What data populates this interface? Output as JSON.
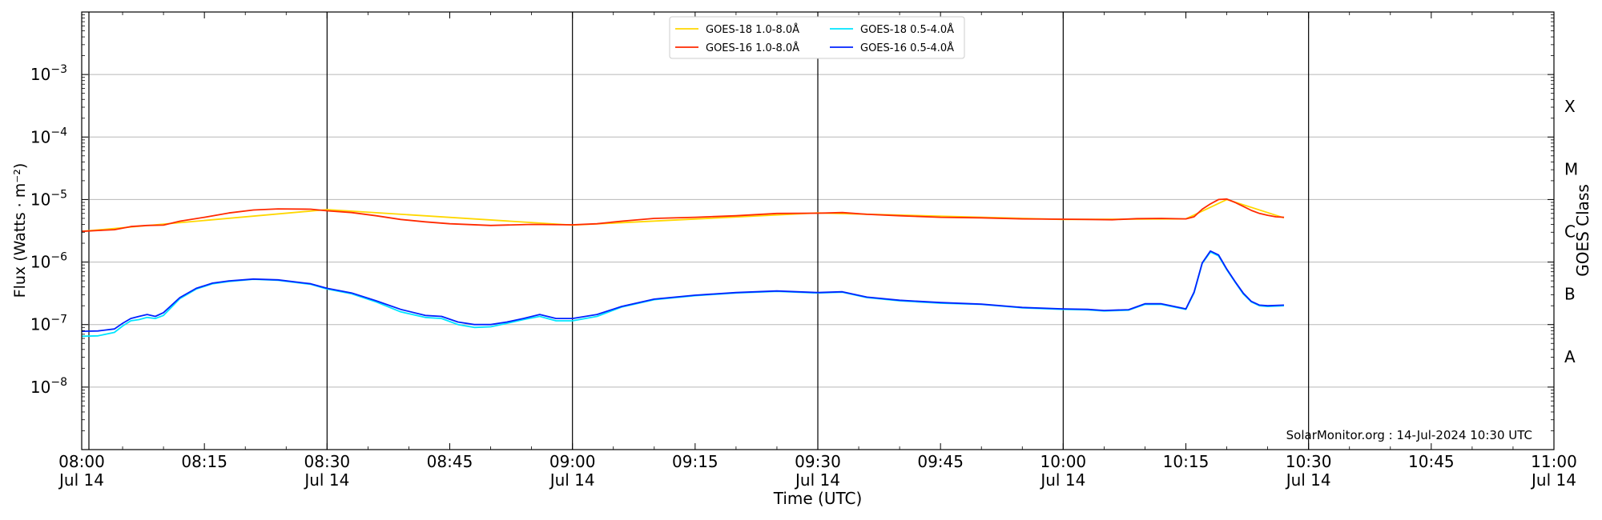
{
  "chart_data": {
    "type": "line",
    "xlabel": "Time (UTC)",
    "ylabel": "Flux (Watts · m⁻²)",
    "ylabel_right": "GOES Class",
    "y_scale": "log",
    "ylim": [
      1e-09,
      0.01
    ],
    "xlim": [
      "2024-07-14T08:00",
      "2024-07-14T11:00"
    ],
    "grid": "horizontal",
    "legend_position": "top-center",
    "watermark": "SolarMonitor.org : 14-Jul-2024 10:30 UTC",
    "y_ticks": [
      {
        "value": 1e-08,
        "base": "10",
        "exp": "−8"
      },
      {
        "value": 1e-07,
        "base": "10",
        "exp": "−7"
      },
      {
        "value": 1e-06,
        "base": "10",
        "exp": "−6"
      },
      {
        "value": 1e-05,
        "base": "10",
        "exp": "−5"
      },
      {
        "value": 0.0001,
        "base": "10",
        "exp": "−4"
      },
      {
        "value": 0.001,
        "base": "10",
        "exp": "−3"
      }
    ],
    "x_ticks": [
      {
        "time": "08:00",
        "label": "08:00",
        "sub": "Jul 14"
      },
      {
        "time": "08:15",
        "label": "08:15",
        "sub": ""
      },
      {
        "time": "08:30",
        "label": "08:30",
        "sub": "Jul 14"
      },
      {
        "time": "08:45",
        "label": "08:45",
        "sub": ""
      },
      {
        "time": "09:00",
        "label": "09:00",
        "sub": "Jul 14"
      },
      {
        "time": "09:15",
        "label": "09:15",
        "sub": ""
      },
      {
        "time": "09:30",
        "label": "09:30",
        "sub": "Jul 14"
      },
      {
        "time": "09:45",
        "label": "09:45",
        "sub": ""
      },
      {
        "time": "10:00",
        "label": "10:00",
        "sub": "Jul 14"
      },
      {
        "time": "10:15",
        "label": "10:15",
        "sub": ""
      },
      {
        "time": "10:30",
        "label": "10:30",
        "sub": "Jul 14"
      },
      {
        "time": "10:45",
        "label": "10:45",
        "sub": ""
      },
      {
        "time": "11:00",
        "label": "11:00",
        "sub": "Jul 14"
      }
    ],
    "vlines": [
      "08:00",
      "08:30",
      "09:00",
      "09:30",
      "10:00",
      "10:30"
    ],
    "goes_classes": [
      {
        "label": "A",
        "value": 3.16e-08
      },
      {
        "label": "B",
        "value": 3.16e-07
      },
      {
        "label": "C",
        "value": 3.16e-06
      },
      {
        "label": "M",
        "value": 3.16e-05
      },
      {
        "label": "X",
        "value": 0.000316
      }
    ],
    "series": [
      {
        "name": "GOES-18 1.0-8.0Å",
        "color": "#ffd700",
        "points": [
          [
            "08:00",
            3.1e-06
          ],
          [
            "08:30",
            6.9e-06
          ],
          [
            "09:00",
            3.9e-06
          ],
          [
            "09:30",
            6.1e-06
          ],
          [
            "10:00",
            4.8e-06
          ],
          [
            "10:15",
            4.9e-06
          ],
          [
            "10:20",
            1e-05
          ],
          [
            "10:27",
            5.1e-06
          ]
        ]
      },
      {
        "name": "GOES-16 1.0-8.0Å",
        "color": "#ff2a00",
        "points": [
          [
            "08:00",
            3.1e-06
          ],
          [
            "08:02",
            3.2e-06
          ],
          [
            "08:04",
            3.3e-06
          ],
          [
            "08:06",
            3.7e-06
          ],
          [
            "08:08",
            3.85e-06
          ],
          [
            "08:10",
            3.9e-06
          ],
          [
            "08:12",
            4.5e-06
          ],
          [
            "08:15",
            5.2e-06
          ],
          [
            "08:18",
            6.1e-06
          ],
          [
            "08:21",
            6.8e-06
          ],
          [
            "08:24",
            7.1e-06
          ],
          [
            "08:28",
            7e-06
          ],
          [
            "08:30",
            6.6e-06
          ],
          [
            "08:33",
            6.2e-06
          ],
          [
            "08:36",
            5.5e-06
          ],
          [
            "08:39",
            4.8e-06
          ],
          [
            "08:42",
            4.4e-06
          ],
          [
            "08:45",
            4.1e-06
          ],
          [
            "08:50",
            3.85e-06
          ],
          [
            "08:55",
            4e-06
          ],
          [
            "09:00",
            3.95e-06
          ],
          [
            "09:03",
            4.1e-06
          ],
          [
            "09:06",
            4.5e-06
          ],
          [
            "09:10",
            5e-06
          ],
          [
            "09:15",
            5.2e-06
          ],
          [
            "09:20",
            5.5e-06
          ],
          [
            "09:25",
            6e-06
          ],
          [
            "09:30",
            6.05e-06
          ],
          [
            "09:33",
            6.2e-06
          ],
          [
            "09:36",
            5.8e-06
          ],
          [
            "09:40",
            5.5e-06
          ],
          [
            "09:45",
            5.2e-06
          ],
          [
            "09:50",
            5.1e-06
          ],
          [
            "09:55",
            4.9e-06
          ],
          [
            "10:00",
            4.85e-06
          ],
          [
            "10:03",
            4.8e-06
          ],
          [
            "10:06",
            4.75e-06
          ],
          [
            "10:09",
            4.95e-06
          ],
          [
            "10:12",
            5e-06
          ],
          [
            "10:15",
            4.9e-06
          ],
          [
            "10:16",
            5.3e-06
          ],
          [
            "10:17",
            7e-06
          ],
          [
            "10:18",
            8.5e-06
          ],
          [
            "10:19",
            1e-05
          ],
          [
            "10:20",
            1.02e-05
          ],
          [
            "10:21",
            9e-06
          ],
          [
            "10:22",
            7.8e-06
          ],
          [
            "10:23",
            6.7e-06
          ],
          [
            "10:24",
            6e-06
          ],
          [
            "10:25",
            5.6e-06
          ],
          [
            "10:26",
            5.3e-06
          ],
          [
            "10:27",
            5.2e-06
          ]
        ]
      },
      {
        "name": "GOES-18 0.5-4.0Å",
        "color": "#00e5ff",
        "points": [
          [
            "08:00",
            6.5e-08
          ],
          [
            "08:02",
            6.6e-08
          ],
          [
            "08:04",
            7.5e-08
          ],
          [
            "08:05",
            9.5e-08
          ],
          [
            "08:06",
            1.15e-07
          ],
          [
            "08:07",
            1.2e-07
          ],
          [
            "08:08",
            1.3e-07
          ],
          [
            "08:09",
            1.25e-07
          ],
          [
            "08:10",
            1.4e-07
          ],
          [
            "08:12",
            2.6e-07
          ],
          [
            "08:14",
            3.7e-07
          ],
          [
            "08:16",
            4.5e-07
          ],
          [
            "08:18",
            4.9e-07
          ],
          [
            "08:21",
            5.3e-07
          ],
          [
            "08:24",
            5.1e-07
          ],
          [
            "08:28",
            4.4e-07
          ],
          [
            "08:30",
            3.7e-07
          ],
          [
            "08:33",
            3.1e-07
          ],
          [
            "08:36",
            2.3e-07
          ],
          [
            "08:39",
            1.6e-07
          ],
          [
            "08:42",
            1.3e-07
          ],
          [
            "08:44",
            1.25e-07
          ],
          [
            "08:46",
            1e-07
          ],
          [
            "08:48",
            9e-08
          ],
          [
            "08:50",
            9.2e-08
          ],
          [
            "08:52",
            1.05e-07
          ],
          [
            "08:54",
            1.2e-07
          ],
          [
            "08:56",
            1.35e-07
          ],
          [
            "08:58",
            1.15e-07
          ],
          [
            "09:00",
            1.15e-07
          ],
          [
            "09:03",
            1.35e-07
          ],
          [
            "09:06",
            1.9e-07
          ],
          [
            "09:10",
            2.5e-07
          ],
          [
            "09:15",
            2.9e-07
          ],
          [
            "09:20",
            3.2e-07
          ],
          [
            "09:25",
            3.4e-07
          ],
          [
            "09:30",
            3.2e-07
          ],
          [
            "09:33",
            3.3e-07
          ],
          [
            "09:36",
            2.7e-07
          ],
          [
            "09:40",
            2.4e-07
          ],
          [
            "09:45",
            2.2e-07
          ],
          [
            "09:50",
            2.1e-07
          ],
          [
            "09:55",
            1.85e-07
          ],
          [
            "10:00",
            1.75e-07
          ],
          [
            "10:03",
            1.72e-07
          ],
          [
            "10:05",
            1.65e-07
          ],
          [
            "10:08",
            1.7e-07
          ],
          [
            "10:10",
            2.1e-07
          ],
          [
            "10:12",
            2.1e-07
          ],
          [
            "10:15",
            1.75e-07
          ],
          [
            "10:16",
            3.2e-07
          ],
          [
            "10:17",
            9.5e-07
          ],
          [
            "10:18",
            1.45e-06
          ],
          [
            "10:19",
            1.25e-06
          ],
          [
            "10:20",
            7.5e-07
          ],
          [
            "10:21",
            4.8e-07
          ],
          [
            "10:22",
            3.1e-07
          ],
          [
            "10:23",
            2.3e-07
          ],
          [
            "10:24",
            2e-07
          ],
          [
            "10:25",
            1.95e-07
          ],
          [
            "10:27",
            2e-07
          ]
        ]
      },
      {
        "name": "GOES-16 0.5-4.0Å",
        "color": "#0022ff",
        "points": [
          [
            "08:00",
            7.8e-08
          ],
          [
            "08:02",
            7.9e-08
          ],
          [
            "08:04",
            8.5e-08
          ],
          [
            "08:05",
            1.05e-07
          ],
          [
            "08:06",
            1.25e-07
          ],
          [
            "08:07",
            1.35e-07
          ],
          [
            "08:08",
            1.45e-07
          ],
          [
            "08:09",
            1.35e-07
          ],
          [
            "08:10",
            1.55e-07
          ],
          [
            "08:12",
            2.7e-07
          ],
          [
            "08:14",
            3.8e-07
          ],
          [
            "08:16",
            4.6e-07
          ],
          [
            "08:18",
            5e-07
          ],
          [
            "08:21",
            5.35e-07
          ],
          [
            "08:24",
            5.2e-07
          ],
          [
            "08:28",
            4.5e-07
          ],
          [
            "08:30",
            3.8e-07
          ],
          [
            "08:33",
            3.2e-07
          ],
          [
            "08:36",
            2.4e-07
          ],
          [
            "08:39",
            1.75e-07
          ],
          [
            "08:42",
            1.4e-07
          ],
          [
            "08:44",
            1.35e-07
          ],
          [
            "08:46",
            1.1e-07
          ],
          [
            "08:48",
            1e-07
          ],
          [
            "08:50",
            1e-07
          ],
          [
            "08:52",
            1.1e-07
          ],
          [
            "08:54",
            1.25e-07
          ],
          [
            "08:56",
            1.45e-07
          ],
          [
            "08:58",
            1.25e-07
          ],
          [
            "09:00",
            1.25e-07
          ],
          [
            "09:03",
            1.45e-07
          ],
          [
            "09:06",
            1.95e-07
          ],
          [
            "09:10",
            2.55e-07
          ],
          [
            "09:15",
            2.95e-07
          ],
          [
            "09:20",
            3.25e-07
          ],
          [
            "09:25",
            3.45e-07
          ],
          [
            "09:30",
            3.25e-07
          ],
          [
            "09:33",
            3.35e-07
          ],
          [
            "09:36",
            2.75e-07
          ],
          [
            "09:40",
            2.45e-07
          ],
          [
            "09:45",
            2.25e-07
          ],
          [
            "09:50",
            2.12e-07
          ],
          [
            "09:55",
            1.88e-07
          ],
          [
            "10:00",
            1.78e-07
          ],
          [
            "10:03",
            1.75e-07
          ],
          [
            "10:05",
            1.68e-07
          ],
          [
            "10:08",
            1.73e-07
          ],
          [
            "10:10",
            2.15e-07
          ],
          [
            "10:12",
            2.15e-07
          ],
          [
            "10:15",
            1.78e-07
          ],
          [
            "10:16",
            3.3e-07
          ],
          [
            "10:17",
            9.7e-07
          ],
          [
            "10:18",
            1.5e-06
          ],
          [
            "10:19",
            1.3e-06
          ],
          [
            "10:20",
            7.7e-07
          ],
          [
            "10:21",
            4.9e-07
          ],
          [
            "10:22",
            3.2e-07
          ],
          [
            "10:23",
            2.35e-07
          ],
          [
            "10:24",
            2.05e-07
          ],
          [
            "10:25",
            2e-07
          ],
          [
            "10:27",
            2.05e-07
          ]
        ]
      }
    ]
  }
}
